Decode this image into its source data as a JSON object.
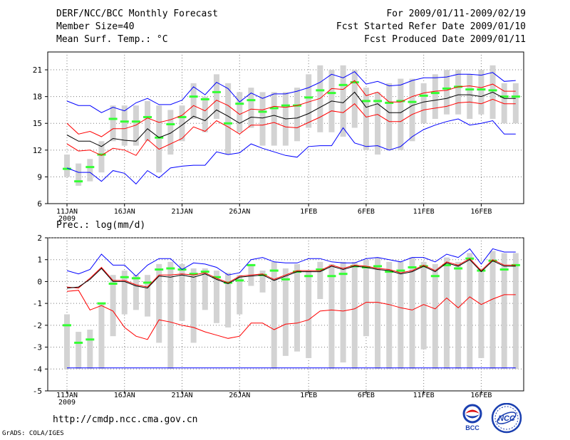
{
  "header": {
    "title": "DERF/NCC/BCC Monthly Forecast",
    "member_size": "Member Size=40",
    "variable": "Mean Surf. Temp.: °C",
    "period": "For 2009/01/11-2009/02/19",
    "started": "Fcst Started Refer Date 2009/01/10",
    "produced": "Fcst Produced Date 2009/01/11"
  },
  "lower_label": "Prec.: log(mm/d)",
  "footer": {
    "url": "http://cmdp.ncc.cma.gov.cn",
    "credit": "GrADS: COLA/IGES"
  },
  "logos": {
    "bcc": "BCC",
    "ncc": "NCC"
  },
  "colors": {
    "max_min": "#0000ff",
    "spread": "#ff0000",
    "mean": "#000000",
    "climatology": "#33ff33",
    "obs_range": "#d3d3d3",
    "grid": "#7a7a7a"
  },
  "chart_data": [
    {
      "type": "line",
      "title": "Mean Surf. Temp.: °C",
      "x_tick_labels": [
        "11JAN",
        "16JAN",
        "21JAN",
        "26JAN",
        "1FEB",
        "6FEB",
        "11FEB",
        "16FEB"
      ],
      "x_tick_days": [
        1,
        6,
        11,
        16,
        22,
        27,
        32,
        37
      ],
      "year_label": "2009",
      "ylim": [
        6,
        23
      ],
      "yticks": [
        6,
        9,
        12,
        15,
        18,
        21
      ],
      "days": 40,
      "series": [
        {
          "name": "max",
          "color": "max_min",
          "values": [
            17.5,
            17,
            17,
            16.2,
            16.8,
            16.4,
            17.3,
            17.8,
            17.1,
            17.1,
            17.6,
            19.1,
            18.2,
            19.6,
            18.9,
            17.4,
            18.4,
            17.8,
            18.3,
            18.3,
            18.6,
            19,
            19.6,
            20.5,
            20.1,
            20.8,
            19.4,
            19.7,
            19.2,
            19.3,
            19.8,
            20.1,
            20.1,
            20.2,
            20.5,
            20.5,
            20.4,
            20.7,
            19.7,
            19.8
          ]
        },
        {
          "name": "upper_spread",
          "color": "spread",
          "values": [
            15,
            13.8,
            14.1,
            13.5,
            14.4,
            14.4,
            14.8,
            15.6,
            15.1,
            15.4,
            15.9,
            17,
            16.4,
            17.6,
            17,
            16,
            16.6,
            16.5,
            16.9,
            16.8,
            17,
            17.4,
            17.8,
            18.9,
            18.8,
            19.8,
            18.1,
            18.5,
            17.4,
            17.4,
            18,
            18.4,
            18.6,
            18.7,
            19.1,
            19.2,
            19,
            19.4,
            18.6,
            18.6
          ]
        },
        {
          "name": "mean",
          "color": "mean",
          "values": [
            13.7,
            13,
            13,
            12.4,
            13.3,
            13.1,
            13,
            14.4,
            13.4,
            13.9,
            14.8,
            15.8,
            15.3,
            16.5,
            15.8,
            15,
            15.7,
            15.6,
            15.9,
            15.5,
            15.6,
            16.1,
            16.8,
            17.5,
            17.3,
            18.5,
            16.8,
            17.2,
            16.2,
            16.2,
            17,
            17.4,
            17.6,
            17.8,
            18.2,
            18.2,
            18,
            18.5,
            17.8,
            17.8
          ]
        },
        {
          "name": "lower_spread",
          "color": "spread",
          "values": [
            12.7,
            11.9,
            12,
            11.4,
            12.2,
            12,
            11.4,
            13.2,
            12.1,
            12.7,
            13.3,
            14.6,
            14.1,
            15.3,
            14.6,
            13.8,
            14.8,
            14.8,
            15.1,
            14.6,
            14.5,
            15.1,
            15.7,
            16.4,
            16.2,
            17.2,
            15.7,
            16,
            15.2,
            15.2,
            16,
            16.5,
            16.7,
            16.9,
            17.3,
            17.4,
            17.2,
            17.7,
            17.2,
            17.2
          ]
        },
        {
          "name": "min",
          "color": "max_min",
          "values": [
            10,
            9.5,
            9.5,
            8.5,
            9.7,
            9.4,
            8.2,
            9.7,
            8.9,
            10,
            10.2,
            10.3,
            10.3,
            11.8,
            11.5,
            11.7,
            12.7,
            12.2,
            11.8,
            11.4,
            11.2,
            12.4,
            12.5,
            12.5,
            14.5,
            12.8,
            12.4,
            12.5,
            12,
            12.4,
            13.5,
            14.3,
            14.8,
            15.2,
            15.5,
            14.8,
            15,
            15.3,
            13.8,
            13.8
          ]
        }
      ],
      "climatology": [
        9.9,
        8.5,
        10.1,
        11.5,
        15.5,
        15.2,
        15.2,
        15.7,
        13.4,
        14.9,
        15.7,
        18,
        17.7,
        18.5,
        15,
        17.2,
        17.6,
        16.3,
        16.7,
        17,
        17,
        17.9,
        18.7,
        18.4,
        19.3,
        19.6,
        17.5,
        17.5,
        17.3,
        17.5,
        17.4,
        18.1,
        18.4,
        18.9,
        19.1,
        18.8,
        18.8,
        18.7,
        18,
        18
      ],
      "obs_range": [
        [
          9,
          11.5
        ],
        [
          8,
          10.5
        ],
        [
          8.5,
          11
        ],
        [
          9.5,
          13
        ],
        [
          13,
          17
        ],
        [
          12.5,
          17
        ],
        [
          12.5,
          17
        ],
        [
          13,
          17.5
        ],
        [
          9.5,
          17
        ],
        [
          11.5,
          16.5
        ],
        [
          13,
          17
        ],
        [
          15.5,
          19.5
        ],
        [
          14,
          18
        ],
        [
          15.5,
          20.5
        ],
        [
          11.5,
          19.5
        ],
        [
          14,
          18.5
        ],
        [
          14.5,
          19
        ],
        [
          12.5,
          18.5
        ],
        [
          12.5,
          18.5
        ],
        [
          12.5,
          18.5
        ],
        [
          13,
          19
        ],
        [
          14.5,
          20.5
        ],
        [
          14,
          21.5
        ],
        [
          14,
          21
        ],
        [
          13.5,
          21.5
        ],
        [
          14.5,
          21
        ],
        [
          12,
          19
        ],
        [
          11.5,
          18.5
        ],
        [
          12,
          19.5
        ],
        [
          12,
          20
        ],
        [
          13,
          20
        ],
        [
          15,
          19.5
        ],
        [
          15.5,
          20.5
        ],
        [
          16,
          21
        ],
        [
          16,
          21
        ],
        [
          15.5,
          20.5
        ],
        [
          16,
          21
        ],
        [
          15.5,
          21.5
        ],
        [
          15,
          19.5
        ],
        [
          15,
          19.5
        ]
      ]
    },
    {
      "type": "line",
      "title": "Prec.: log(mm/d)",
      "x_tick_labels": [
        "11JAN",
        "16JAN",
        "21JAN",
        "26JAN",
        "1FEB",
        "6FEB",
        "11FEB",
        "16FEB"
      ],
      "x_tick_days": [
        1,
        6,
        11,
        16,
        22,
        27,
        32,
        37
      ],
      "year_label": "2009",
      "ylim": [
        -5,
        2
      ],
      "yticks": [
        -5,
        -4,
        -3,
        -2,
        -1,
        0,
        1,
        2
      ],
      "days": 40,
      "series": [
        {
          "name": "max",
          "color": "max_min",
          "values": [
            0.5,
            0.35,
            0.55,
            1.25,
            0.75,
            0.75,
            0.25,
            0.75,
            1.05,
            1.05,
            0.55,
            0.85,
            0.8,
            0.65,
            0.3,
            0.4,
            1,
            1.1,
            0.9,
            0.85,
            0.85,
            1.05,
            1.05,
            0.9,
            0.85,
            0.85,
            1.05,
            1.1,
            1,
            0.9,
            1.1,
            1.1,
            0.9,
            1.25,
            1.1,
            1.5,
            0.8,
            1.5,
            1.35,
            1.35
          ]
        },
        {
          "name": "upper_spread",
          "color": "spread",
          "values": [
            -0.25,
            -0.3,
            0.15,
            0.65,
            0.05,
            0.05,
            -0.15,
            -0.25,
            0.3,
            0.3,
            0.35,
            0.3,
            0.4,
            0.15,
            -0.05,
            0.25,
            0.3,
            0.35,
            0.1,
            0.3,
            0.5,
            0.5,
            0.5,
            0.75,
            0.6,
            0.75,
            0.7,
            0.6,
            0.55,
            0.4,
            0.5,
            0.75,
            0.5,
            0.9,
            0.75,
            1.05,
            0.5,
            1,
            0.75,
            0.75
          ]
        },
        {
          "name": "mean",
          "color": "mean",
          "values": [
            -0.3,
            -0.25,
            0.1,
            0.6,
            0,
            0,
            -0.2,
            -0.3,
            0.25,
            0.2,
            0.3,
            0.2,
            0.35,
            0.1,
            -0.1,
            0.2,
            0.25,
            0.3,
            0.05,
            0.25,
            0.45,
            0.45,
            0.45,
            0.7,
            0.55,
            0.7,
            0.65,
            0.55,
            0.5,
            0.35,
            0.45,
            0.7,
            0.45,
            0.85,
            0.7,
            1,
            0.45,
            0.95,
            0.7,
            0.7
          ]
        },
        {
          "name": "lower_spread",
          "color": "spread",
          "values": [
            -0.45,
            -0.4,
            -1.3,
            -1.1,
            -1.35,
            -2.1,
            -2.5,
            -2.65,
            -1.75,
            -1.85,
            -2,
            -2.1,
            -2.3,
            -2.45,
            -2.6,
            -2.5,
            -1.9,
            -1.9,
            -2.2,
            -1.95,
            -1.9,
            -1.75,
            -1.35,
            -1.3,
            -1.35,
            -1.25,
            -0.95,
            -0.95,
            -1.05,
            -1.2,
            -1.3,
            -1.05,
            -1.25,
            -0.75,
            -1.2,
            -0.7,
            -1.05,
            -0.8,
            -0.6,
            -0.6
          ]
        },
        {
          "name": "min",
          "color": "max_min",
          "values": [
            -3.95,
            -3.95,
            -3.95,
            -3.95,
            -3.95,
            -3.95,
            -3.95,
            -3.95,
            -3.95,
            -3.95,
            -3.95,
            -3.95,
            -3.95,
            -3.95,
            -3.95,
            -3.95,
            -3.95,
            -3.95,
            -3.95,
            -3.95,
            -3.95,
            -3.95,
            -3.95,
            -3.95,
            -3.95,
            -3.95,
            -3.95,
            -3.95,
            -3.95,
            -3.95,
            -3.95,
            -3.95,
            -3.95,
            -3.95,
            -3.95,
            -3.95,
            -3.95,
            -3.95,
            -3.95,
            -3.95
          ]
        }
      ],
      "climatology": [
        -2,
        -2.8,
        -2.65,
        -1,
        -0.1,
        0.2,
        0.15,
        -0.05,
        0.55,
        0.6,
        0.55,
        0.35,
        0.45,
        0.2,
        -0.05,
        0.05,
        0.75,
        0.3,
        0.5,
        0.1,
        0.45,
        0.25,
        0.55,
        0.25,
        0.35,
        0.7,
        0.65,
        0.7,
        0.45,
        0.5,
        0.65,
        0.7,
        0.25,
        0.75,
        0.6,
        1.05,
        0.5,
        0.95,
        0.55,
        0.75
      ],
      "obs_range": [
        [
          -4,
          -1.5
        ],
        [
          -4,
          -2.3
        ],
        [
          -4,
          -2.2
        ],
        [
          -4,
          -1
        ],
        [
          -2.5,
          0.3
        ],
        [
          -1.5,
          0.5
        ],
        [
          -1.3,
          0.3
        ],
        [
          -1.6,
          0.3
        ],
        [
          -2.8,
          0.8
        ],
        [
          -4,
          0.9
        ],
        [
          -1.8,
          0.8
        ],
        [
          -2.8,
          0.6
        ],
        [
          -1.3,
          0.6
        ],
        [
          -1.9,
          0.5
        ],
        [
          -2.1,
          0.4
        ],
        [
          -1.5,
          0.3
        ],
        [
          -0.2,
          0.8
        ],
        [
          -0.5,
          0.5
        ],
        [
          -4,
          0.9
        ],
        [
          -3.4,
          0.6
        ],
        [
          -3.2,
          0.8
        ],
        [
          -3.5,
          0.5
        ],
        [
          -0.8,
          0.9
        ],
        [
          -4,
          0.8
        ],
        [
          -3.7,
          0.9
        ],
        [
          -4,
          0.9
        ],
        [
          -2.5,
          1
        ],
        [
          -4,
          1.1
        ],
        [
          -4,
          0.9
        ],
        [
          -4,
          0.9
        ],
        [
          -4,
          1.1
        ],
        [
          -3.1,
          0.9
        ],
        [
          -4,
          0.8
        ],
        [
          -4,
          1.1
        ],
        [
          -4,
          0.9
        ],
        [
          -4,
          1.3
        ],
        [
          -3.5,
          0.6
        ],
        [
          -4,
          1.4
        ],
        [
          -4,
          1.3
        ],
        [
          -4,
          1.3
        ]
      ]
    }
  ]
}
